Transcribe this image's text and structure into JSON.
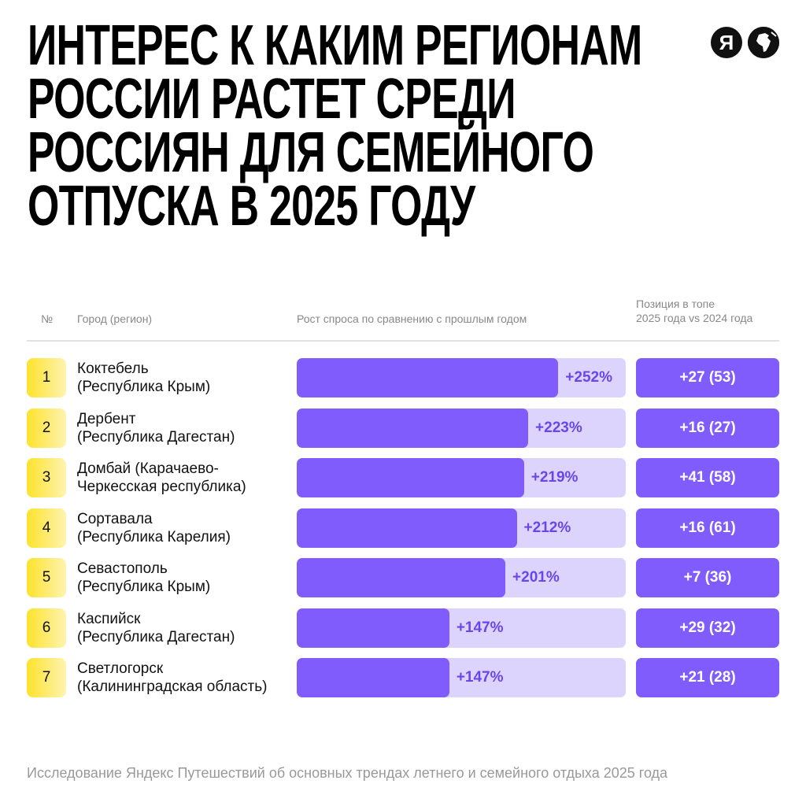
{
  "title": [
    "ИНТЕРЕС К КАКИМ РЕГИОНАМ",
    "РОССИИ РАСТЕТ СРЕДИ",
    "РОССИЯН ДЛЯ СЕМЕЙНОГО",
    "ОТПУСКА В 2025 ГОДУ"
  ],
  "logo": {
    "yandex": "Я",
    "icons": [
      "yandex-logo",
      "globe-icon"
    ]
  },
  "headers": {
    "num": "№",
    "city": "Город (регион)",
    "growth": "Рост спроса по сравнению с прошлым годом",
    "position_line1": "Позиция в топе",
    "position_line2": "2025 года vs 2024 года"
  },
  "colors": {
    "bar": "#7f5cfb",
    "track": "#ddd4fd",
    "badge": "#fde22c"
  },
  "chart_data": {
    "type": "bar",
    "title": "Интерес к каким регионам России растет среди россиян для семейного отпуска в 2025 году",
    "xlabel": "Рост спроса по сравнению с прошлым годом, %",
    "xlim": [
      0,
      317
    ],
    "rows": [
      {
        "rank": "1",
        "city": "Коктебель",
        "region": "(Республика Крым)",
        "value": 252,
        "label": "+252%",
        "position": "+27 (53)"
      },
      {
        "rank": "2",
        "city": "Дербент",
        "region": "(Республика Дагестан)",
        "value": 223,
        "label": "+223%",
        "position": "+16 (27)"
      },
      {
        "rank": "3",
        "city": "Домбай (Карачаево-",
        "region": "Черкесская республика)",
        "value": 219,
        "label": "+219%",
        "position": "+41 (58)"
      },
      {
        "rank": "4",
        "city": "Сортавала",
        "region": "(Республика Карелия)",
        "value": 212,
        "label": "+212%",
        "position": "+16 (61)"
      },
      {
        "rank": "5",
        "city": "Севастополь",
        "region": "(Республика Крым)",
        "value": 201,
        "label": "+201%",
        "position": "+7 (36)"
      },
      {
        "rank": "6",
        "city": "Каспийск",
        "region": "(Республика Дагестан)",
        "value": 147,
        "label": "+147%",
        "position": "+29 (32)"
      },
      {
        "rank": "7",
        "city": "Светлогорск",
        "region": "(Калининградская область)",
        "value": 147,
        "label": "+147%",
        "position": "+21 (28)"
      }
    ]
  },
  "footer": "Исследование Яндекс Путешествий об основных трендах летнего и семейного отдыха 2025 года"
}
